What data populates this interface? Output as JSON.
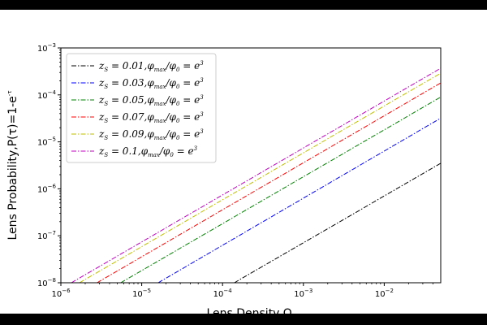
{
  "chart_data": {
    "type": "line",
    "xscale": "log",
    "yscale": "log",
    "xlim": [
      1e-06,
      0.05
    ],
    "ylim": [
      1e-08,
      0.001
    ],
    "xlabel": "Lens Density,Ω",
    "xlabel_sub": "L",
    "ylabel": "Lens Probability,P(τ)=1-e",
    "ylabel_sup": "-τ",
    "x_ticks": [
      {
        "base": "10",
        "exp": "−6",
        "value": 1e-06
      },
      {
        "base": "10",
        "exp": "−5",
        "value": 1e-05
      },
      {
        "base": "10",
        "exp": "−4",
        "value": 0.0001
      },
      {
        "base": "10",
        "exp": "−3",
        "value": 0.001
      },
      {
        "base": "10",
        "exp": "−2",
        "value": 0.01
      }
    ],
    "y_ticks": [
      {
        "base": "10",
        "exp": "−8",
        "value": 1e-08
      },
      {
        "base": "10",
        "exp": "−7",
        "value": 1e-07
      },
      {
        "base": "10",
        "exp": "−6",
        "value": 1e-06
      },
      {
        "base": "10",
        "exp": "−5",
        "value": 1e-05
      },
      {
        "base": "10",
        "exp": "−4",
        "value": 0.0001
      },
      {
        "base": "10",
        "exp": "−3",
        "value": 0.001
      }
    ],
    "legend_position": "top-left",
    "grid": false,
    "series": [
      {
        "name": "zS = 0.01,φmax/φ0 = e3",
        "z": "0.01",
        "color": "#000000",
        "x": [
          0.00014,
          0.05
        ],
        "y": [
          1e-08,
          3.5e-06
        ]
      },
      {
        "name": "zS = 0.03,φmax/φ0 = e3",
        "z": "0.03",
        "color": "#0000ff",
        "x": [
          1.6e-05,
          0.05
        ],
        "y": [
          1e-08,
          3.2e-05
        ]
      },
      {
        "name": "zS = 0.05,φmax/φ0 = e3",
        "z": "0.05",
        "color": "#008000",
        "x": [
          5.5e-06,
          0.05
        ],
        "y": [
          1e-08,
          9e-05
        ]
      },
      {
        "name": "zS = 0.07,φmax/φ0 = e3",
        "z": "0.07",
        "color": "#ff0000",
        "x": [
          2.8e-06,
          0.05
        ],
        "y": [
          1e-08,
          0.00018
        ]
      },
      {
        "name": "zS = 0.09,φmax/φ0 = e3",
        "z": "0.09",
        "color": "#bfbf00",
        "x": [
          1.7e-06,
          0.05
        ],
        "y": [
          1e-08,
          0.00029
        ]
      },
      {
        "name": "zS = 0.1,φmax/φ0 = e3",
        "z": "0.1",
        "color": "#bf00bf",
        "x": [
          1.35e-06,
          0.05
        ],
        "y": [
          1e-08,
          0.00037
        ]
      }
    ]
  }
}
